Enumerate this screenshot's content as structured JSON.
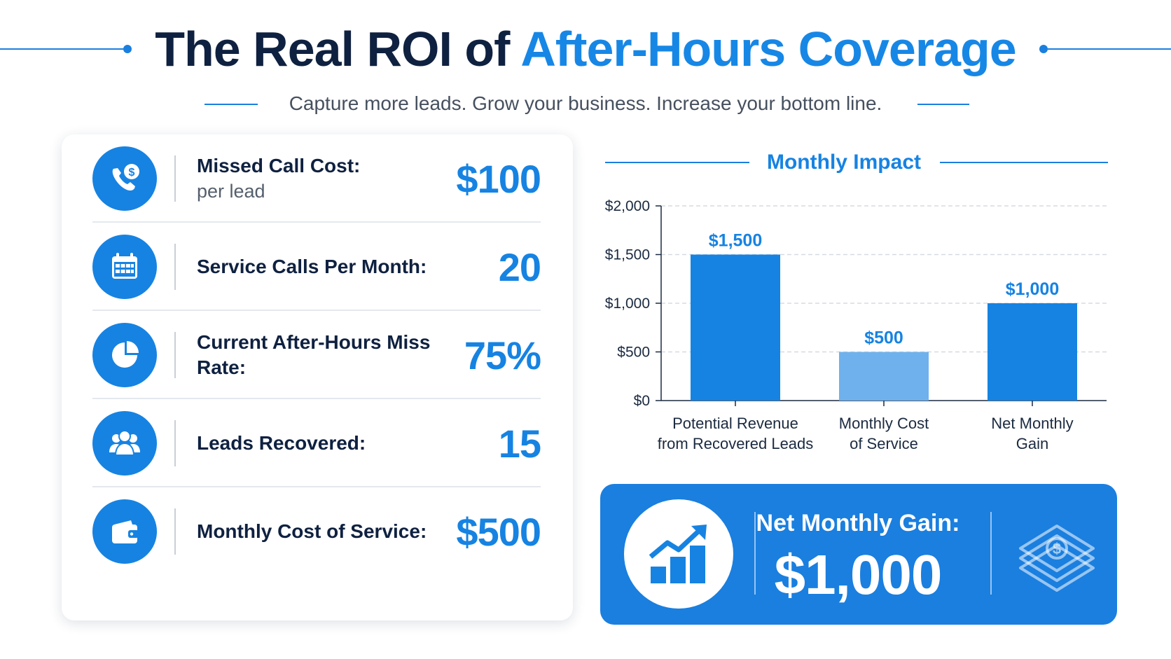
{
  "header": {
    "title_part1": "The Real ROI of ",
    "title_part2": "After-Hours Coverage",
    "subtitle": "Capture more leads. Grow your business. Increase your bottom line."
  },
  "metrics": [
    {
      "label": "Missed Call Cost:",
      "sublabel": "per lead",
      "value": "$100",
      "icon": "phone-dollar-icon"
    },
    {
      "label": "Service Calls Per Month:",
      "sublabel": "",
      "value": "20",
      "icon": "calendar-icon"
    },
    {
      "label": "Current After-Hours Miss Rate:",
      "sublabel": "",
      "value": "75%",
      "icon": "pie-chart-icon"
    },
    {
      "label": "Leads Recovered:",
      "sublabel": "",
      "value": "15",
      "icon": "users-icon"
    },
    {
      "label": "Monthly Cost of Service:",
      "sublabel": "",
      "value": "$500",
      "icon": "wallet-icon"
    }
  ],
  "chart_data": {
    "type": "bar",
    "title": "Monthly Impact",
    "categories": [
      "Potential Revenue from Recovered Leads",
      "Monthly Cost of Service",
      "Net Monthly Gain"
    ],
    "category_lines": [
      [
        "Potential Revenue",
        "from Recovered Leads"
      ],
      [
        "Monthly Cost",
        "of Service"
      ],
      [
        "Net Monthly",
        "Gain"
      ]
    ],
    "values": [
      1500,
      500,
      1000
    ],
    "data_labels": [
      "$1,500",
      "$500",
      "$1,000"
    ],
    "bar_colors": [
      "#1683e2",
      "#6fb1ec",
      "#1683e2"
    ],
    "ylim": [
      0,
      2000
    ],
    "yticks": [
      0,
      500,
      1000,
      1500,
      2000
    ],
    "ytick_labels": [
      "$0",
      "$500",
      "$1,000",
      "$1,500",
      "$2,000"
    ],
    "grid": true,
    "legend": "none"
  },
  "banner": {
    "label": "Net Monthly Gain:",
    "value": "$1,000",
    "left_icon": "growth-chart-icon",
    "right_icon": "money-stack-icon"
  },
  "colors": {
    "accent": "#1683e2",
    "light_accent": "#6fb1ec",
    "dark_text": "#0f2140"
  }
}
